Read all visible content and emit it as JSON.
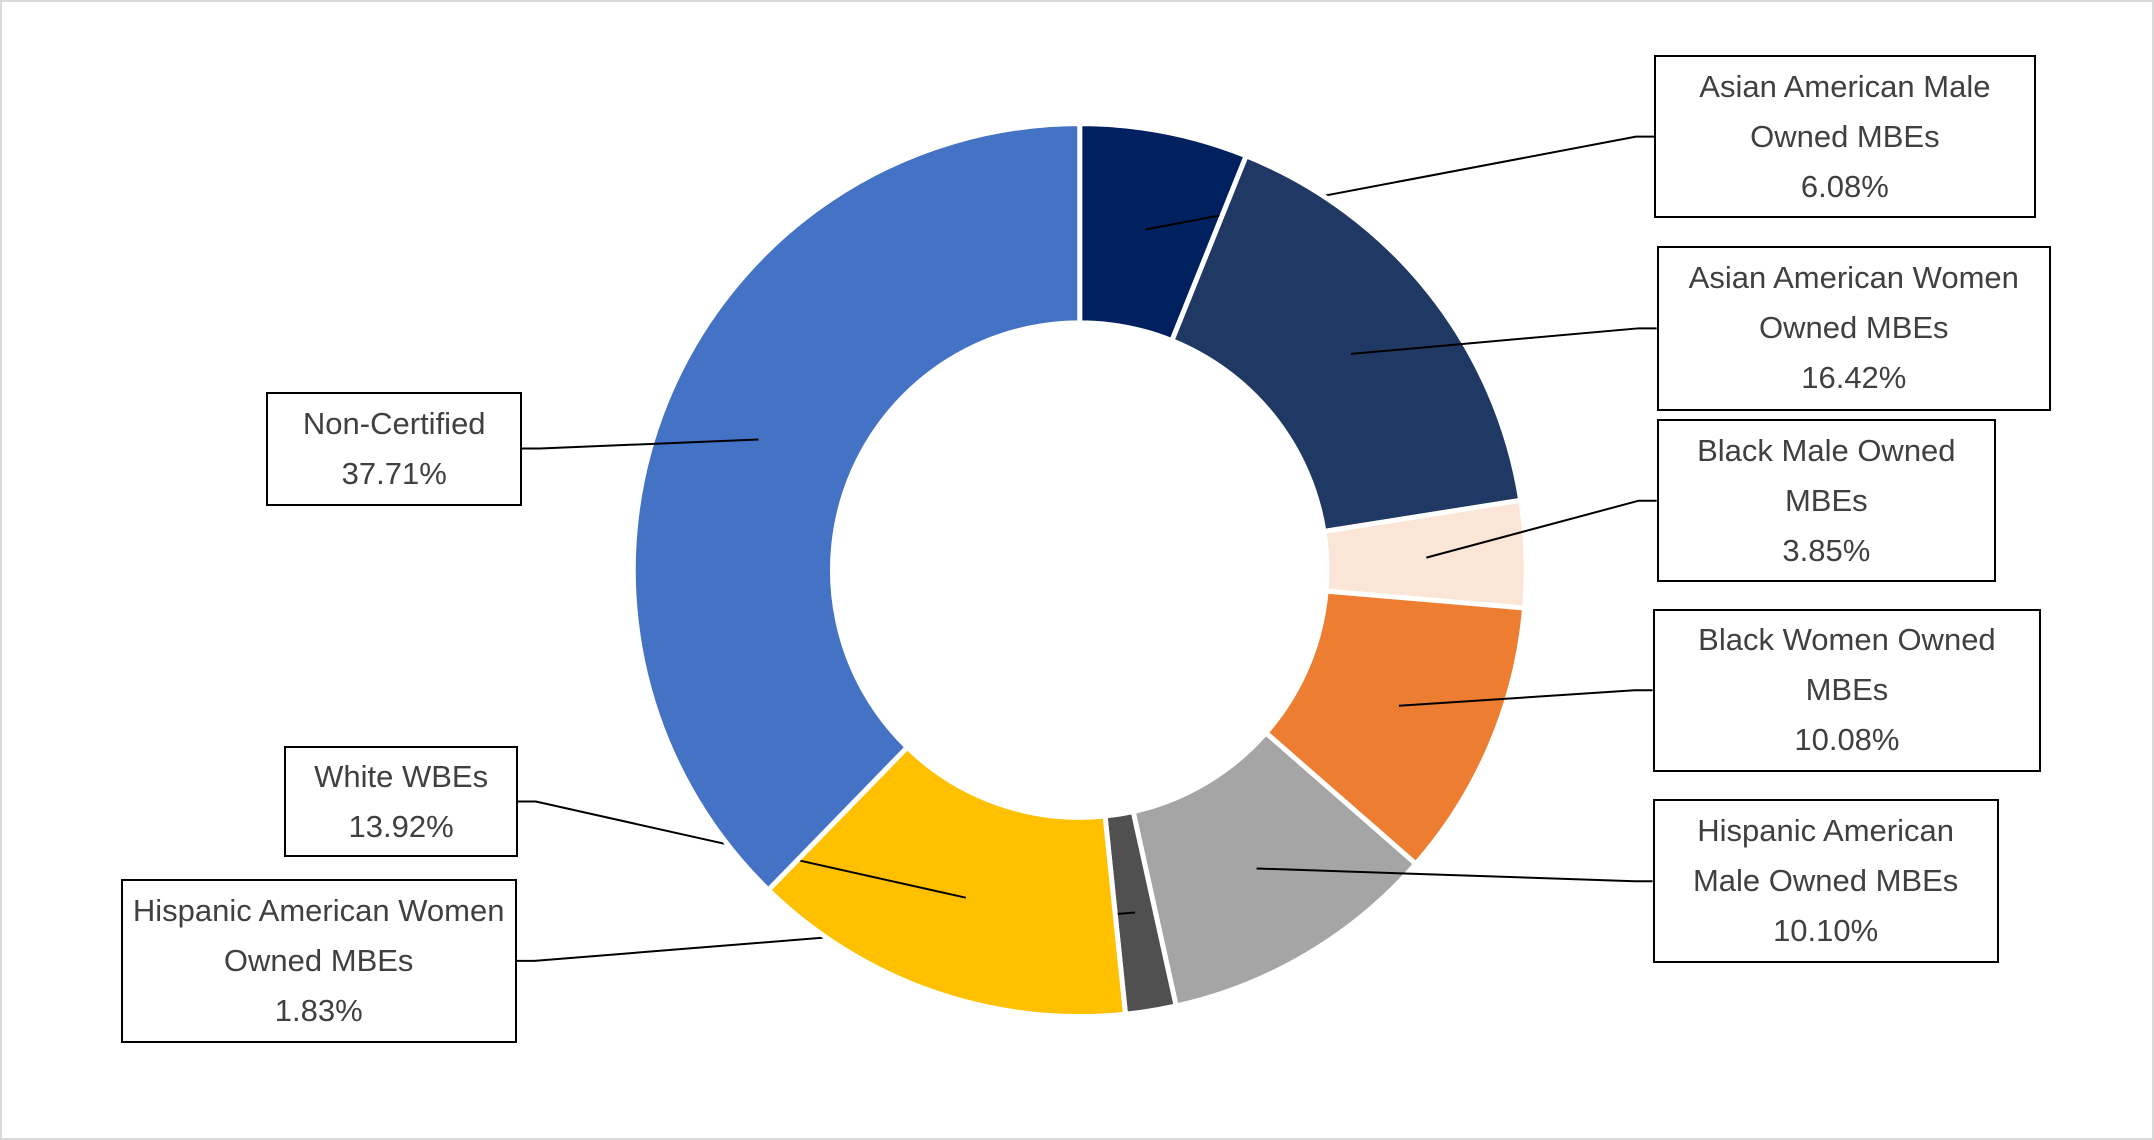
{
  "chart_data": {
    "type": "donut",
    "categories": [
      "Asian American Male Owned MBEs",
      "Asian American Women Owned MBEs",
      "Black Male Owned MBEs",
      "Black Women Owned MBEs",
      "Hispanic American Male Owned MBEs",
      "Hispanic American Women Owned MBEs",
      "White WBEs",
      "Non-Certified"
    ],
    "values": [
      6.08,
      16.42,
      3.85,
      10.08,
      10.1,
      1.83,
      13.92,
      37.71
    ],
    "value_labels": [
      "6.08%",
      "16.42%",
      "3.85%",
      "10.08%",
      "10.10%",
      "1.83%",
      "13.92%",
      "37.71%"
    ],
    "colors": [
      "#002060",
      "#1f3864",
      "#fbe5d6",
      "#ed7d31",
      "#a5a5a5",
      "#505050",
      "#ffc000",
      "#4472c4"
    ]
  }
}
